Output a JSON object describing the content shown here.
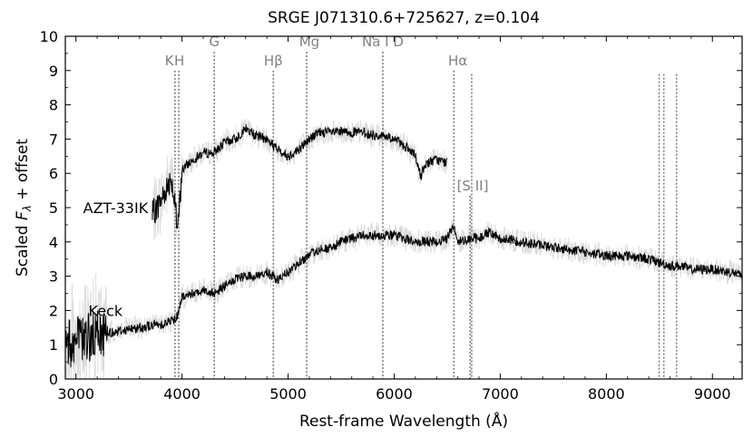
{
  "chart_data": {
    "type": "line",
    "title": "SRGE J071310.6+725627, z=0.104",
    "xlabel": "Rest-frame Wavelength (Å)",
    "ylabel_text": "Scaled ",
    "ylabel_var": "F",
    "ylabel_sub": "λ",
    "ylabel_suffix": " + offset",
    "xlim": [
      2900,
      9280
    ],
    "ylim": [
      0,
      10
    ],
    "x_ticks": [
      3000,
      4000,
      5000,
      6000,
      7000,
      8000,
      9000
    ],
    "y_ticks": [
      0,
      1,
      2,
      3,
      4,
      5,
      6,
      7,
      8,
      9,
      10
    ],
    "grid": false,
    "colors": {
      "spectrum": "#000000",
      "raw": "#d9d9d9",
      "line_marker": "#808080"
    },
    "series": [
      {
        "name": "AZT-33IK",
        "x": [
          3720,
          3800,
          3900,
          3960,
          4000,
          4100,
          4200,
          4300,
          4400,
          4500,
          4600,
          4700,
          4800,
          4900,
          5000,
          5100,
          5200,
          5300,
          5400,
          5500,
          5600,
          5700,
          5800,
          5900,
          6000,
          6100,
          6200,
          6250,
          6300,
          6400,
          6500
        ],
        "y": [
          4.8,
          5.2,
          5.9,
          4.3,
          6.1,
          6.4,
          6.6,
          6.6,
          6.9,
          7.0,
          7.3,
          7.1,
          7.0,
          6.7,
          6.5,
          6.7,
          7.0,
          7.2,
          7.2,
          7.2,
          7.2,
          7.2,
          7.1,
          7.1,
          7.0,
          6.8,
          6.5,
          5.9,
          6.3,
          6.4,
          6.3
        ]
      },
      {
        "name": "Keck",
        "x": [
          2900,
          3000,
          3200,
          3400,
          3600,
          3800,
          3900,
          3950,
          4000,
          4100,
          4200,
          4300,
          4400,
          4500,
          4600,
          4700,
          4800,
          4900,
          5000,
          5100,
          5200,
          5300,
          5400,
          5500,
          5600,
          5700,
          5800,
          5900,
          6000,
          6100,
          6200,
          6300,
          6400,
          6500,
          6560,
          6600,
          6700,
          6800,
          6900,
          7000,
          7200,
          7400,
          7600,
          7800,
          8000,
          8200,
          8400,
          8500,
          8600,
          8700,
          8800,
          9000,
          9200,
          9280
        ],
        "y": [
          1.0,
          1.1,
          1.3,
          1.4,
          1.5,
          1.6,
          1.7,
          1.8,
          2.4,
          2.5,
          2.6,
          2.5,
          2.7,
          2.9,
          3.0,
          3.0,
          3.1,
          2.9,
          3.1,
          3.4,
          3.6,
          3.8,
          3.8,
          4.0,
          4.1,
          4.2,
          4.2,
          4.2,
          4.2,
          4.1,
          4.0,
          4.0,
          4.0,
          4.1,
          4.5,
          4.0,
          4.1,
          4.1,
          4.3,
          4.1,
          4.0,
          3.9,
          3.8,
          3.7,
          3.6,
          3.6,
          3.5,
          3.4,
          3.3,
          3.3,
          3.2,
          3.2,
          3.1,
          3.0
        ]
      }
    ],
    "series_labels": [
      {
        "text": "AZT-33IK",
        "x": 3680,
        "y": 5.0
      },
      {
        "text": "Keck",
        "x": 3440,
        "y": 2.0
      }
    ],
    "line_markers": [
      {
        "label": "K",
        "x": 3934,
        "label_y": 9.05,
        "label_x": 3880
      },
      {
        "label": "H",
        "x": 3969,
        "label_y": 9.05,
        "label_x": 3975
      },
      {
        "label": "G",
        "x": 4304,
        "label_y": 9.6,
        "label_x": 4304
      },
      {
        "label": "Hβ",
        "x": 4861,
        "label_y": 9.05,
        "label_x": 4861
      },
      {
        "label": "Mg",
        "x": 5175,
        "label_y": 9.6,
        "label_x": 5200
      },
      {
        "label": "Na I D",
        "x": 5893,
        "label_y": 9.6,
        "label_x": 5893
      },
      {
        "label": "Hα",
        "x": 6563,
        "label_y": 9.05,
        "label_x": 6600
      },
      {
        "label": "[S II]",
        "x": 6716,
        "label_y": 5.4,
        "label_x": 6740
      },
      {
        "label": "",
        "x": 6731
      },
      {
        "label": "",
        "x": 8498
      },
      {
        "label": "",
        "x": 8542
      },
      {
        "label": "",
        "x": 8662
      }
    ]
  }
}
